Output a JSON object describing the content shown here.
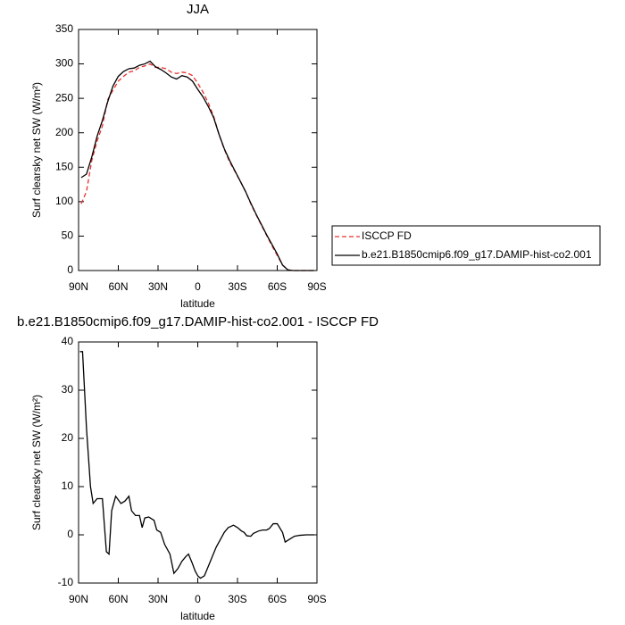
{
  "chart_data": [
    {
      "type": "line",
      "title": "JJA",
      "xlabel": "latitude",
      "ylabel": "Surf clearsky net SW (W/m²)",
      "x": [
        88,
        84,
        80,
        76,
        72,
        68,
        64,
        60,
        56,
        52,
        48,
        44,
        40,
        36,
        32,
        28,
        24,
        20,
        16,
        12,
        8,
        4,
        0,
        -4,
        -8,
        -12,
        -16,
        -20,
        -24,
        -28,
        -32,
        -36,
        -40,
        -44,
        -48,
        -52,
        -56,
        -60,
        -64,
        -68,
        -72,
        -76,
        -80,
        -84,
        -88
      ],
      "series": [
        {
          "name": "ISCCP FD",
          "color": "#e8312f",
          "linestyle": "dashed",
          "values": [
            97,
            115,
            160,
            188,
            210,
            248,
            262,
            275,
            282,
            288,
            290,
            295,
            297,
            300,
            295,
            295,
            293,
            288,
            286,
            288,
            287,
            283,
            272,
            259,
            243,
            224,
            198,
            176,
            158,
            144,
            130,
            115,
            97,
            81,
            66,
            51,
            36,
            22,
            8,
            1,
            0,
            0,
            0,
            0,
            0
          ]
        },
        {
          "name": "b.e21.B1850cmip6.f09_g17.DAMIP-hist-co2.001",
          "color": "#000000",
          "linestyle": "solid",
          "values": [
            135,
            140,
            165,
            195,
            218,
            245,
            268,
            282,
            289,
            293,
            294,
            298,
            300,
            304,
            296,
            292,
            287,
            281,
            278,
            283,
            281,
            275,
            263,
            252,
            238,
            222,
            198,
            177,
            160,
            145,
            130,
            115,
            98,
            82,
            67,
            52,
            38,
            24,
            8,
            1,
            0,
            0,
            0,
            0,
            0
          ]
        }
      ],
      "xlim": [
        90,
        -90
      ],
      "xticks": [
        {
          "value": 90,
          "label": "90N"
        },
        {
          "value": 60,
          "label": "60N"
        },
        {
          "value": 30,
          "label": "30N"
        },
        0,
        {
          "value": -30,
          "label": "30S"
        },
        {
          "value": -60,
          "label": "60S"
        },
        {
          "value": -90,
          "label": "90S"
        }
      ],
      "ylim": [
        0,
        350
      ],
      "yticks": [
        0,
        50,
        100,
        150,
        200,
        250,
        300,
        350
      ],
      "legend": "right"
    },
    {
      "type": "line",
      "title": "b.e21.B1850cmip6.f09_g17.DAMIP-hist-co2.001 - ISCCP FD",
      "xlabel": "latitude",
      "ylabel": "Surf clearsky net SW (W/m²)",
      "x": [
        89,
        87,
        84,
        81,
        79,
        76,
        72,
        69,
        67,
        65,
        62,
        58,
        55,
        52,
        50,
        47,
        44,
        42,
        40,
        37,
        33,
        31,
        28,
        25,
        21,
        18,
        15,
        12,
        9,
        7,
        4,
        2,
        0,
        -2,
        -5,
        -8,
        -11,
        -14,
        -17,
        -20,
        -23,
        -27,
        -30,
        -33,
        -35,
        -37,
        -40,
        -42,
        -46,
        -49,
        -52,
        -54,
        -57,
        -60,
        -64,
        -66,
        -70,
        -73,
        -77,
        -82,
        -88
      ],
      "values": [
        38,
        38,
        22,
        10,
        6.5,
        7.5,
        7.5,
        -3.5,
        -4,
        5,
        8,
        6.5,
        7,
        8,
        5,
        4,
        4,
        1.5,
        3.5,
        3.7,
        3,
        1,
        0.5,
        -2,
        -4,
        -8,
        -7,
        -5.5,
        -4.5,
        -4,
        -6,
        -7.5,
        -8.5,
        -9,
        -8.5,
        -6.5,
        -4.5,
        -2.5,
        -1,
        0.5,
        1.5,
        2,
        1.5,
        0.8,
        0.5,
        -0.2,
        -0.3,
        0.3,
        0.8,
        1,
        1,
        1.3,
        2.3,
        2.3,
        0.5,
        -1.5,
        -0.8,
        -0.3,
        -0.1,
        0,
        0
      ],
      "color": "#000000",
      "xlim": [
        90,
        -90
      ],
      "xticks": [
        {
          "value": 90,
          "label": "90N"
        },
        {
          "value": 60,
          "label": "60N"
        },
        {
          "value": 30,
          "label": "30N"
        },
        0,
        {
          "value": -30,
          "label": "30S"
        },
        {
          "value": -60,
          "label": "60S"
        },
        {
          "value": -90,
          "label": "90S"
        }
      ],
      "ylim": [
        -10,
        40
      ],
      "yticks": [
        -10,
        0,
        10,
        20,
        30,
        40
      ]
    }
  ]
}
